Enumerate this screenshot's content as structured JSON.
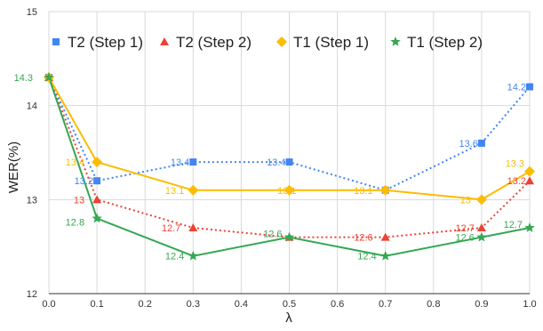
{
  "chart_data": {
    "type": "line",
    "x": [
      0.0,
      0.1,
      0.3,
      0.5,
      0.7,
      0.9,
      1.0
    ],
    "xlabel": "λ",
    "ylabel": "WER(%)",
    "xlim": [
      0.0,
      1.0
    ],
    "ylim": [
      12,
      15
    ],
    "xticks": [
      "0.0",
      "0.1",
      "0.2",
      "0.3",
      "0.4",
      "0.5",
      "0.6",
      "0.7",
      "0.8",
      "0.9",
      "1.0"
    ],
    "yticks": [
      "12",
      "13",
      "14",
      "15"
    ],
    "grid": true,
    "legend_position": "top",
    "series": [
      {
        "name": "T2 (Step 1)",
        "color": "#4285f4",
        "marker": "square",
        "line": "dotted",
        "values": [
          14.3,
          13.2,
          13.4,
          13.4,
          13.1,
          13.6,
          14.2
        ],
        "labels": [
          "",
          "13.2",
          "13.4",
          "13.4",
          "",
          "13.6",
          "14.2"
        ]
      },
      {
        "name": "T2 (Step 2)",
        "color": "#ea4335",
        "marker": "triangle",
        "line": "dotted",
        "values": [
          14.3,
          13.0,
          12.7,
          12.6,
          12.6,
          12.7,
          13.2
        ],
        "labels": [
          "",
          "13",
          "12.7",
          "",
          "12.6",
          "12.7",
          "13.2"
        ]
      },
      {
        "name": "T1 (Step 1)",
        "color": "#fbbc04",
        "marker": "diamond",
        "line": "solid",
        "values": [
          14.3,
          13.4,
          13.1,
          13.1,
          13.1,
          13.0,
          13.3
        ],
        "labels": [
          "",
          "13.4",
          "13.1",
          "13.1",
          "13.1",
          "13",
          "13.3"
        ]
      },
      {
        "name": "T1 (Step 2)",
        "color": "#34a853",
        "marker": "star",
        "line": "solid",
        "values": [
          14.3,
          12.8,
          12.4,
          12.6,
          12.4,
          12.6,
          12.7
        ],
        "labels": [
          "14.3",
          "12.8",
          "12.4",
          "12.6",
          "12.4",
          "12.6",
          "12.7"
        ]
      }
    ]
  }
}
